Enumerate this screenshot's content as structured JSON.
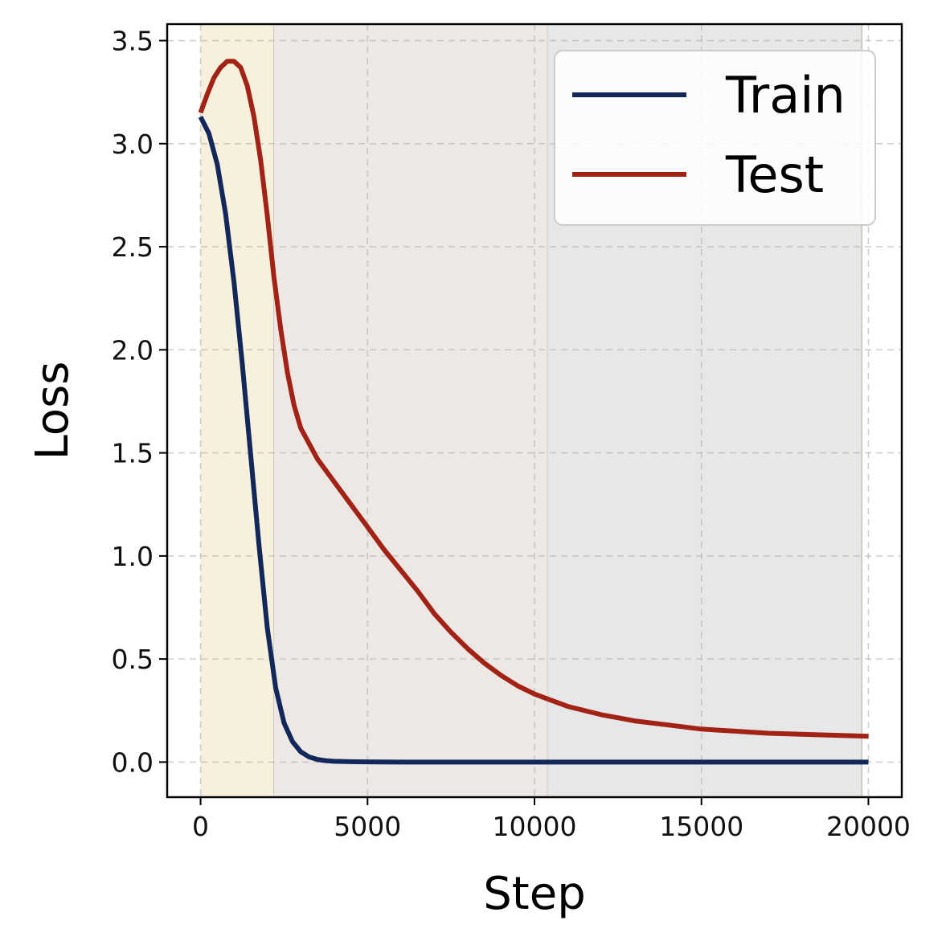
{
  "chart_data": {
    "type": "line",
    "xlabel": "Step",
    "ylabel": "Loss",
    "xlim": [
      -1000,
      21000
    ],
    "ylim": [
      -0.17,
      3.58
    ],
    "xticks": [
      0,
      5000,
      10000,
      15000,
      20000
    ],
    "xtick_labels": [
      "0",
      "5000",
      "10000",
      "15000",
      "20000"
    ],
    "yticks": [
      0.0,
      0.5,
      1.0,
      1.5,
      2.0,
      2.5,
      3.0,
      3.5
    ],
    "ytick_labels": [
      "0.0",
      "0.5",
      "1.0",
      "1.5",
      "2.0",
      "2.5",
      "3.0",
      "3.5"
    ],
    "grid": true,
    "legend_position": "top-right",
    "phases": [
      {
        "x0": 0,
        "x1": 2200,
        "color": "#f7f0dc"
      },
      {
        "x0": 2200,
        "x1": 10400,
        "color": "#ede8e3"
      },
      {
        "x0": 10400,
        "x1": 19800,
        "color": "#e6e7e9"
      }
    ],
    "series": [
      {
        "name": "Train",
        "color": "#13285a",
        "x": [
          0,
          250,
          500,
          750,
          1000,
          1250,
          1500,
          1750,
          2000,
          2250,
          2500,
          2750,
          3000,
          3250,
          3500,
          3750,
          4000,
          4500,
          5000,
          6000,
          8000,
          10000,
          12000,
          14000,
          16000,
          18000,
          20000
        ],
        "y": [
          3.13,
          3.05,
          2.9,
          2.66,
          2.33,
          1.93,
          1.49,
          1.05,
          0.65,
          0.36,
          0.19,
          0.1,
          0.05,
          0.025,
          0.013,
          0.007,
          0.004,
          0.002,
          0.001,
          0.0,
          0.0,
          0.0,
          0.0,
          0.0,
          0.0,
          0.0,
          0.0
        ]
      },
      {
        "name": "Test",
        "color": "#a32216",
        "x": [
          0,
          200,
          400,
          600,
          800,
          1000,
          1200,
          1400,
          1600,
          1800,
          2000,
          2200,
          2400,
          2600,
          2800,
          3000,
          3500,
          4000,
          4500,
          5000,
          5500,
          6000,
          6500,
          7000,
          7500,
          8000,
          8500,
          9000,
          9500,
          10000,
          10500,
          11000,
          12000,
          13000,
          14000,
          15000,
          16000,
          17000,
          18000,
          19000,
          20000
        ],
        "y": [
          3.15,
          3.24,
          3.32,
          3.37,
          3.4,
          3.4,
          3.37,
          3.28,
          3.13,
          2.92,
          2.65,
          2.35,
          2.1,
          1.89,
          1.73,
          1.62,
          1.47,
          1.36,
          1.25,
          1.14,
          1.03,
          0.93,
          0.83,
          0.72,
          0.63,
          0.55,
          0.48,
          0.42,
          0.37,
          0.33,
          0.3,
          0.27,
          0.23,
          0.2,
          0.18,
          0.16,
          0.15,
          0.14,
          0.135,
          0.13,
          0.125
        ]
      }
    ]
  }
}
